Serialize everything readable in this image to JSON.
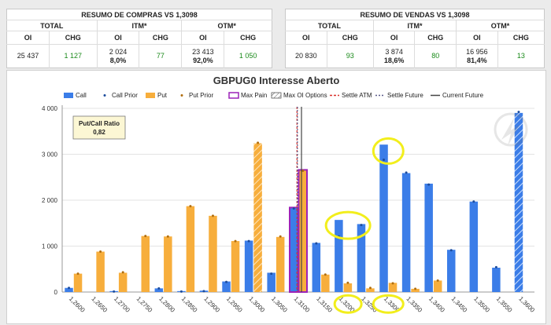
{
  "compras": {
    "title": "RESUMO DE COMPRAS VS 1,3098",
    "groups": [
      "TOTAL",
      "ITM*",
      "OTM*"
    ],
    "cols": [
      "OI",
      "CHG",
      "OI",
      "CHG",
      "OI",
      "CHG"
    ],
    "total_oi": "25 437",
    "total_chg": "1 127",
    "itm_oi": "2 024",
    "itm_pct": "8,0%",
    "itm_chg": "77",
    "otm_oi": "23 413",
    "otm_pct": "92,0%",
    "otm_chg": "1 050"
  },
  "vendas": {
    "title": "RESUMO DE VENDAS VS 1,3098",
    "groups": [
      "TOTAL",
      "ITM*",
      "OTM*"
    ],
    "cols": [
      "OI",
      "CHG",
      "OI",
      "CHG",
      "OI",
      "CHG"
    ],
    "total_oi": "20 830",
    "total_chg": "93",
    "itm_oi": "3 874",
    "itm_pct": "18,6%",
    "itm_chg": "80",
    "otm_oi": "16 956",
    "otm_pct": "81,4%",
    "otm_chg": "13"
  },
  "legend": [
    "Call",
    "Call Prior",
    "Put",
    "Put Prior",
    "Max Pain",
    "Max OI Options",
    "Settle ATM",
    "Settle Future",
    "Current Future"
  ],
  "pcr": {
    "label": "Put/Call Ratio",
    "value": "0,82"
  },
  "colors": {
    "call": "#3b7de8",
    "put": "#f7ae3c",
    "maxpain": "#9b22b8",
    "settle_atm": "#d9302a",
    "settle_future": "#5a5a8a",
    "current_future": "#444444",
    "highlight": "#f2ee1c"
  },
  "chart_data": {
    "type": "bar",
    "title": "GBPUG0 Interesse Aberto",
    "categories": [
      "1,2600",
      "1,2650",
      "1,2700",
      "1,2750",
      "1,2800",
      "1,2850",
      "1,2900",
      "1,2950",
      "1,3000",
      "1,3050",
      "1,3100",
      "1,3150",
      "1,3200",
      "1,3250",
      "1,3300",
      "1,3350",
      "1,3400",
      "1,3450",
      "1,3500",
      "1,3550",
      "1,3600"
    ],
    "series": [
      {
        "name": "Call",
        "values": [
          90,
          0,
          20,
          0,
          80,
          20,
          30,
          230,
          1120,
          420,
          1840,
          1070,
          1570,
          1480,
          3210,
          2590,
          2360,
          920,
          1970,
          530,
          3900
        ]
      },
      {
        "name": "Call Prior",
        "values": [
          90,
          0,
          10,
          0,
          80,
          10,
          20,
          220,
          1110,
          400,
          1820,
          1060,
          1210,
          1460,
          2880,
          2600,
          2340,
          910,
          1970,
          540,
          3920
        ]
      },
      {
        "name": "Put",
        "values": [
          400,
          880,
          420,
          1220,
          1210,
          1870,
          1660,
          1110,
          3240,
          1200,
          2660,
          380,
          190,
          80,
          200,
          70,
          250,
          0,
          0,
          0,
          0
        ]
      },
      {
        "name": "Put Prior",
        "values": [
          400,
          880,
          430,
          1220,
          1210,
          1870,
          1660,
          1110,
          3250,
          1210,
          2640,
          380,
          200,
          90,
          190,
          70,
          250,
          0,
          0,
          0,
          0
        ]
      }
    ],
    "max_oi": {
      "call": "1,3600",
      "put": "1,3000"
    },
    "max_pain": "1,3100",
    "settle_atm": 1.3097,
    "settle_future": 1.3098,
    "current_future": 1.3107,
    "ylim": [
      0,
      4000
    ],
    "yticks": [
      "0",
      "1 000",
      "2 000",
      "3 000",
      "4 000"
    ],
    "grid": true,
    "legend_position": "top"
  }
}
